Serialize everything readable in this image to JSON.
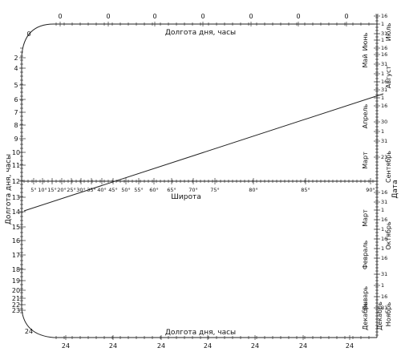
{
  "nomogram": {
    "top_title": "Долгота дня, часы",
    "bottom_title": "Долгота дня, часы",
    "left_title": "Долгота дня, часы",
    "latitude_title": "Широта",
    "date_title": "Дата",
    "top_ticks": [
      "0",
      "0",
      "0",
      "0",
      "0",
      "0",
      "0"
    ],
    "bottom_ticks": [
      "24",
      "24",
      "24",
      "24",
      "24",
      "24",
      "24"
    ],
    "corner_top": "0",
    "corner_bottom": "24",
    "left_scale": [
      "2",
      "4",
      "5",
      "6",
      "7",
      "8",
      "9",
      "10",
      "11",
      "12",
      "13",
      "14",
      "15",
      "16",
      "17",
      "18",
      "19",
      "20",
      "21",
      "22",
      "23"
    ],
    "latitude_ticks": [
      "5°",
      "10°",
      "15°",
      "20°",
      "25°",
      "30°",
      "35°",
      "40°",
      "45°",
      "50°",
      "55°",
      "60°",
      "65°",
      "70°",
      "75°",
      "80°",
      "85°",
      "90°"
    ],
    "date_inner_months": [
      "Июнь",
      "Май",
      "Апрель",
      "Март",
      "Март",
      "Февраль",
      "Январь",
      "Декабрь"
    ],
    "date_outer_months": [
      "Июль",
      "Август",
      "Сентябрь",
      "Октябрь",
      "Ноябрь",
      "Декабрь"
    ],
    "date_day_ticks": [
      "16",
      "1",
      "31",
      "1",
      "16",
      "16",
      "31",
      "1",
      "16",
      "31",
      "1",
      "16",
      "30",
      "1",
      "31",
      "21",
      "16",
      "31",
      "1",
      "16",
      "1",
      "16",
      "1",
      "16",
      "31",
      "1",
      "16",
      "31"
    ]
  }
}
